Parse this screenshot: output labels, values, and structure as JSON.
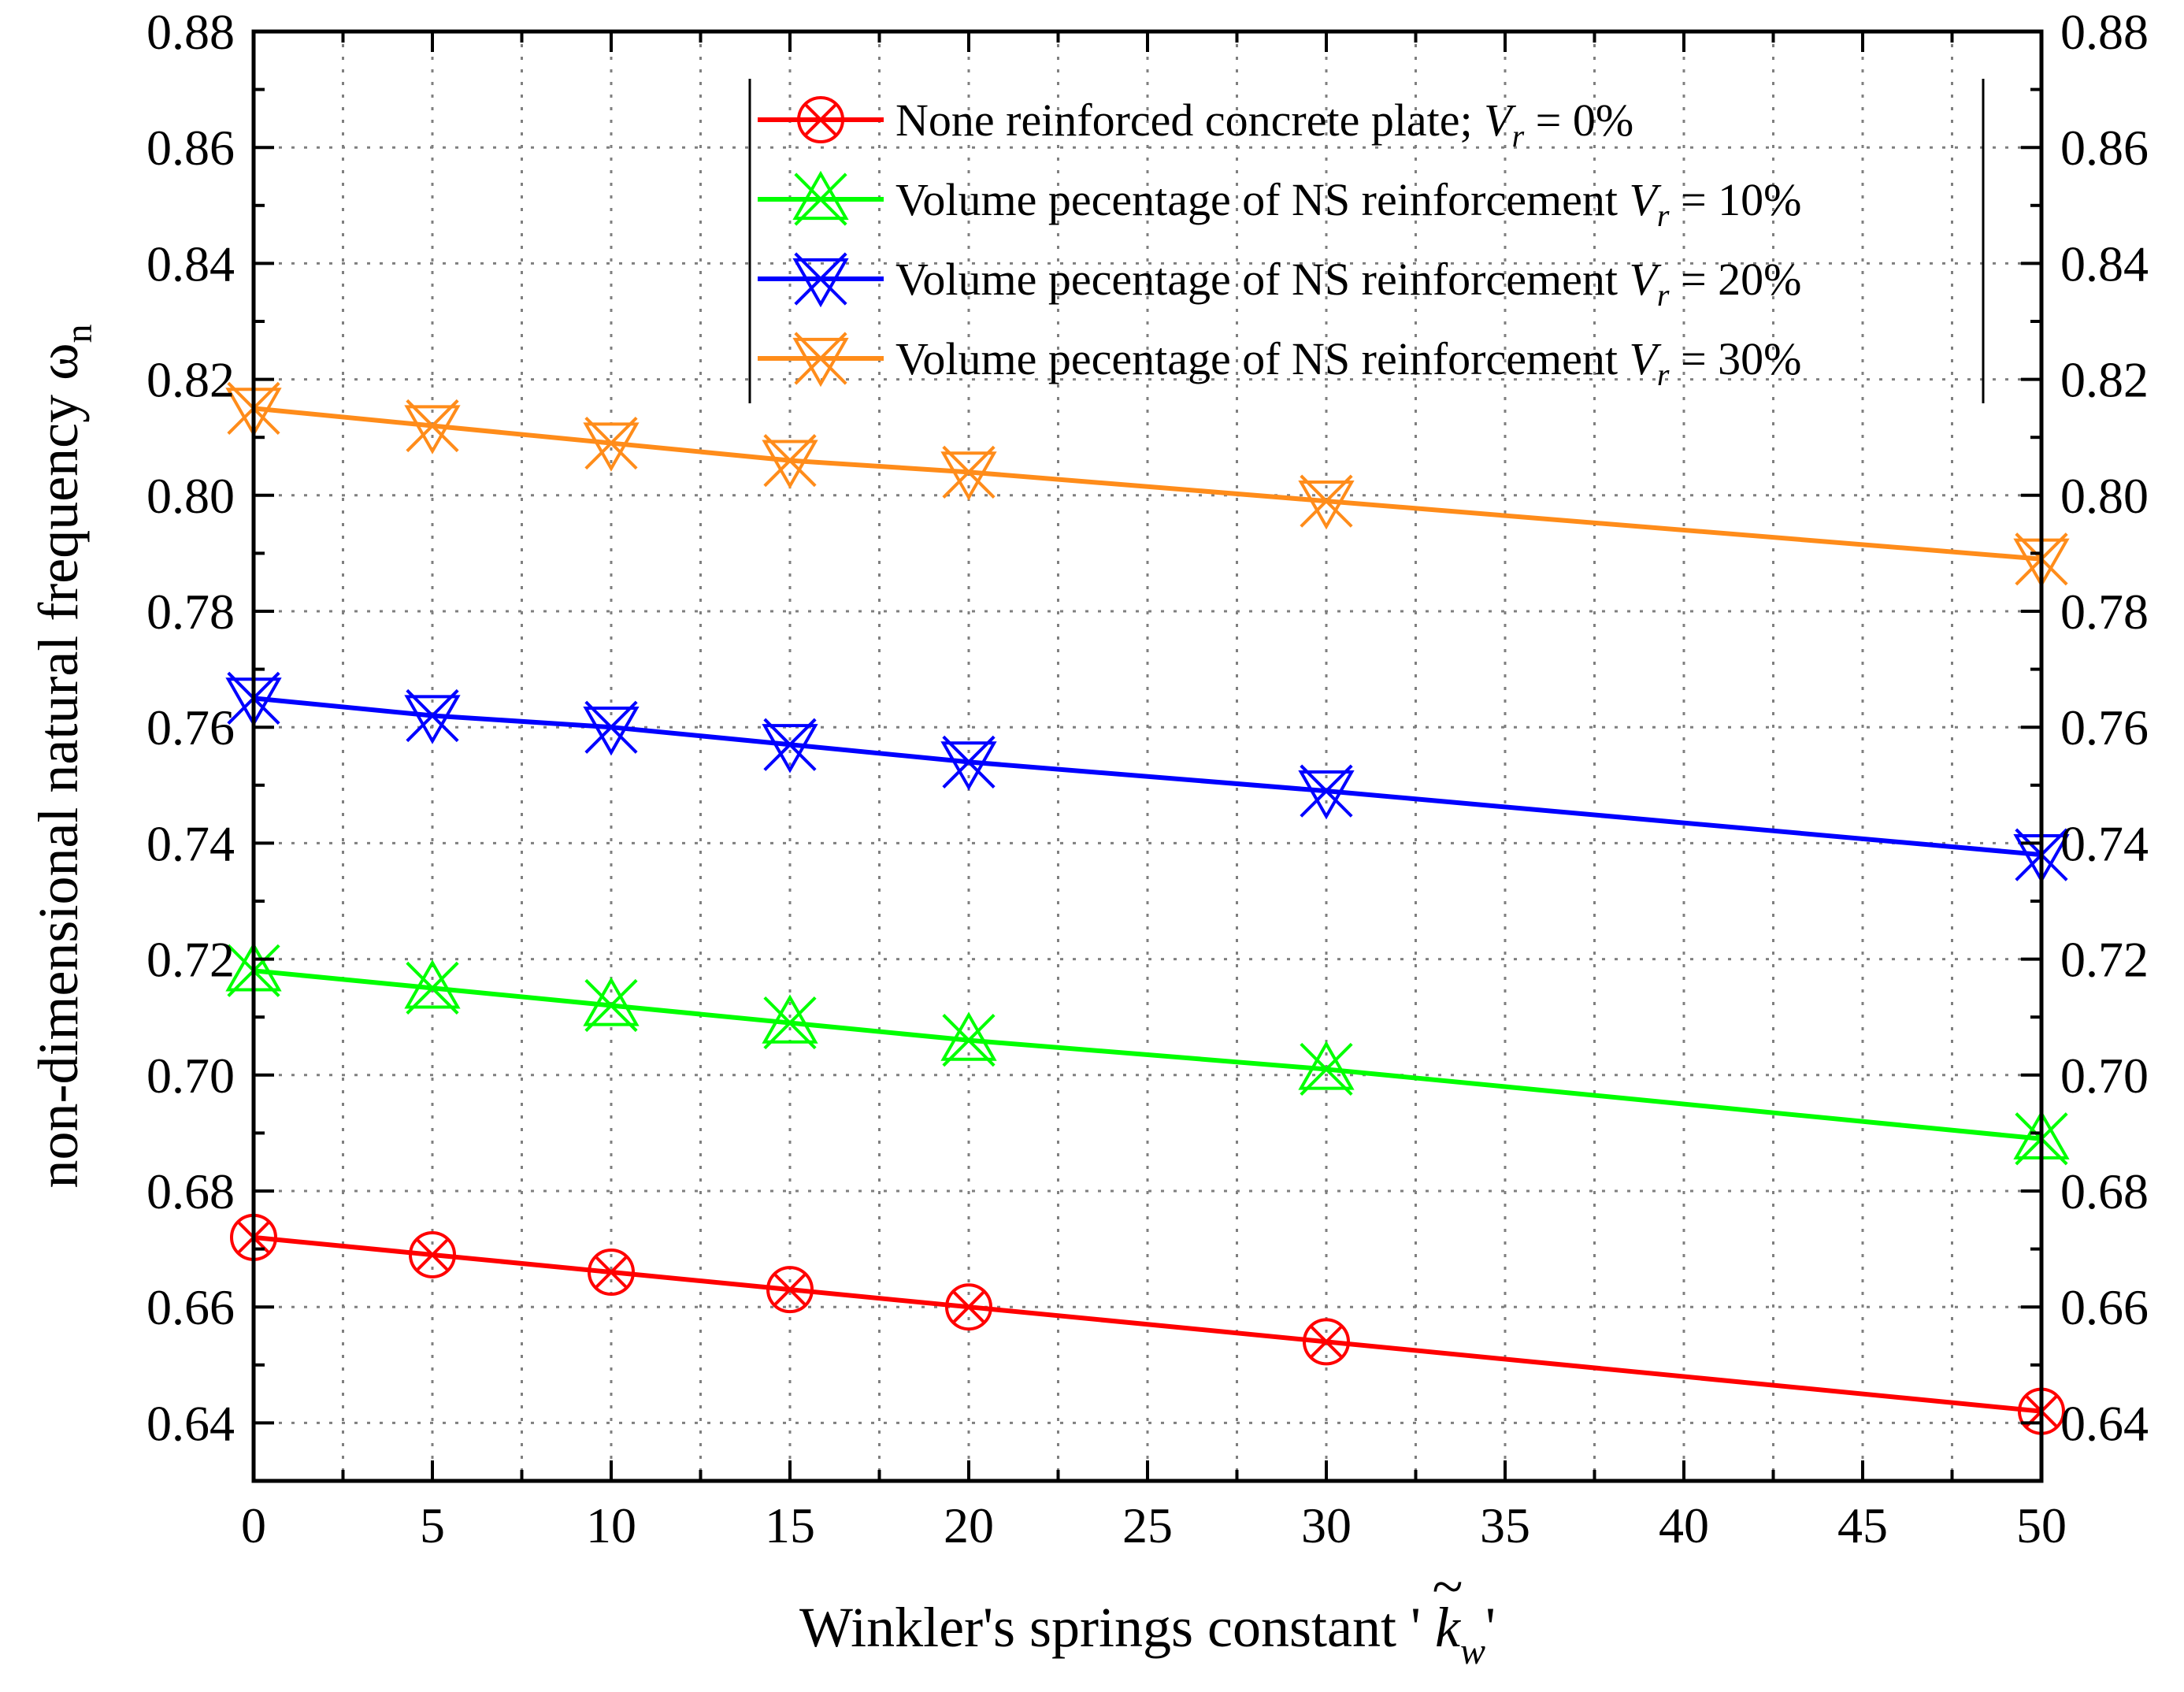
{
  "chart_data": {
    "type": "line",
    "x": [
      0,
      5,
      10,
      15,
      20,
      30,
      50
    ],
    "xlabel": "Winkler's springs constant ' k̃w'",
    "xlabel_parts": {
      "prefix": "Winkler's springs constant '",
      "symbol": "k",
      "accent": "~",
      "subscript": "w",
      "suffix": "'"
    },
    "ylabel": "non-dimensional natural frequency ωn",
    "ylabel_parts": {
      "main": "non-dimensional natural frequency ω",
      "subscript": "n"
    },
    "xlim": [
      0,
      50
    ],
    "ylim": [
      0.63,
      0.88
    ],
    "xticks": [
      "0",
      "5",
      "10",
      "15",
      "20",
      "25",
      "30",
      "35",
      "40",
      "45",
      "50"
    ],
    "yticks": [
      "0.64",
      "0.66",
      "0.68",
      "0.70",
      "0.72",
      "0.74",
      "0.76",
      "0.78",
      "0.80",
      "0.82",
      "0.84",
      "0.86",
      "0.88"
    ],
    "grid": true,
    "legend_position": "top-right",
    "series": [
      {
        "name": "None reinforced concrete plate; Vr = 0%",
        "legend": {
          "text": "None reinforced concrete plate; ",
          "var": "V",
          "sub": "r",
          "rest": " = 0%"
        },
        "color": "#ff0000",
        "marker": "circle-x",
        "values": [
          0.672,
          0.669,
          0.666,
          0.663,
          0.66,
          0.654,
          0.642
        ]
      },
      {
        "name": "Volume pecentage of NS reinforcement Vr = 10%",
        "legend": {
          "text": "Volume pecentage of NS reinforcement ",
          "var": "V",
          "sub": "r",
          "rest": " = 10%"
        },
        "color": "#00ff00",
        "marker": "up-triangle-x",
        "values": [
          0.718,
          0.715,
          0.712,
          0.709,
          0.706,
          0.701,
          0.689
        ]
      },
      {
        "name": "Volume pecentage of NS reinforcement Vr = 20%",
        "legend": {
          "text": "Volume pecentage of NS reinforcement ",
          "var": "V",
          "sub": "r",
          "rest": " = 20%"
        },
        "color": "#0000ff",
        "marker": "down-triangle-x",
        "values": [
          0.765,
          0.762,
          0.76,
          0.757,
          0.754,
          0.749,
          0.738
        ]
      },
      {
        "name": "Volume pecentage of NS reinforcement Vr = 30%",
        "legend": {
          "text": "Volume pecentage of NS reinforcement ",
          "var": "V",
          "sub": "r",
          "rest": " = 30%"
        },
        "color": "#ff8c1a",
        "marker": "down-triangle-x",
        "values": [
          0.815,
          0.812,
          0.809,
          0.806,
          0.804,
          0.799,
          0.789
        ]
      }
    ]
  }
}
